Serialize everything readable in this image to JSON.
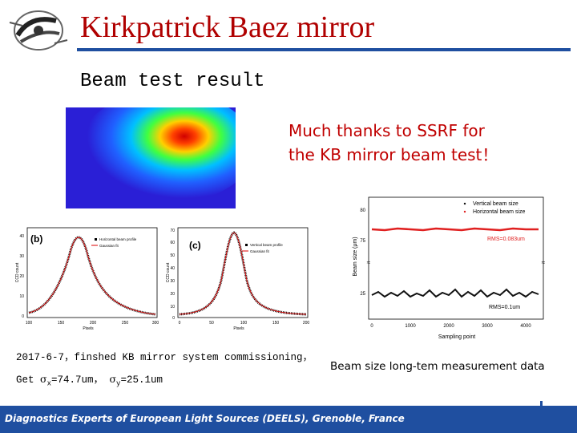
{
  "header": {
    "title": "Kirkpatrick Baez mirror",
    "logo_icon": "institute-logo-icon"
  },
  "subtitle": "Beam test result",
  "thanks_note": {
    "line1": "Much thanks to SSRF for",
    "line2": "the KB mirror beam test！",
    "color": "#c00000"
  },
  "profile_plots": [
    {
      "panel_label": "(b)",
      "legend": [
        "Horizontal beam profile",
        "Gaussian fit"
      ],
      "y_label": "CCD count",
      "x_label": "Pixels",
      "y_ticks": [
        "40",
        "30",
        "20",
        "10",
        "0"
      ],
      "x_ticks": [
        "100",
        "150",
        "200",
        "250",
        "300"
      ],
      "y_range": [
        0,
        40
      ],
      "x_range": [
        100,
        300
      ]
    },
    {
      "panel_label": "(c)",
      "legend": [
        "Vertical beam profile",
        "Gaussian fit"
      ],
      "y_label": "CCD count",
      "x_label": "Pixels",
      "y_ticks": [
        "70",
        "60",
        "50",
        "40",
        "30",
        "20",
        "10",
        "0"
      ],
      "x_ticks": [
        "0",
        "50",
        "100",
        "150",
        "200"
      ],
      "y_range": [
        0,
        70
      ],
      "x_range": [
        0,
        200
      ]
    }
  ],
  "long_term_plot": {
    "y_label": "Beam size (μm)",
    "x_label": "Sampling point",
    "y_ticks": [
      "80",
      "75",
      "25"
    ],
    "x_ticks": [
      "0",
      "1000",
      "2000",
      "3000",
      "4000"
    ],
    "legend": [
      "Vertical beam size",
      "Horizontal beam size"
    ],
    "annotations": [
      "RMS=0.083um",
      "RMS=0.1um"
    ],
    "series_colors": {
      "vertical": "#111111",
      "horizontal": "#e02020"
    }
  },
  "caption_left": {
    "line1": "2017-6-7，finshed KB mirror system commissioning，",
    "line2_prefix": "Get ",
    "sigma": "σ",
    "sub_x": "x",
    "value_x": "=74.7um，  ",
    "sub_y": "y",
    "value_y": "=25.1um"
  },
  "caption_right": "Beam size long-tem measurement data",
  "footer": {
    "text": "Diagnostics Experts of European Light Sources (DEELS), Grenoble, France",
    "color": "#1f4fa0"
  }
}
